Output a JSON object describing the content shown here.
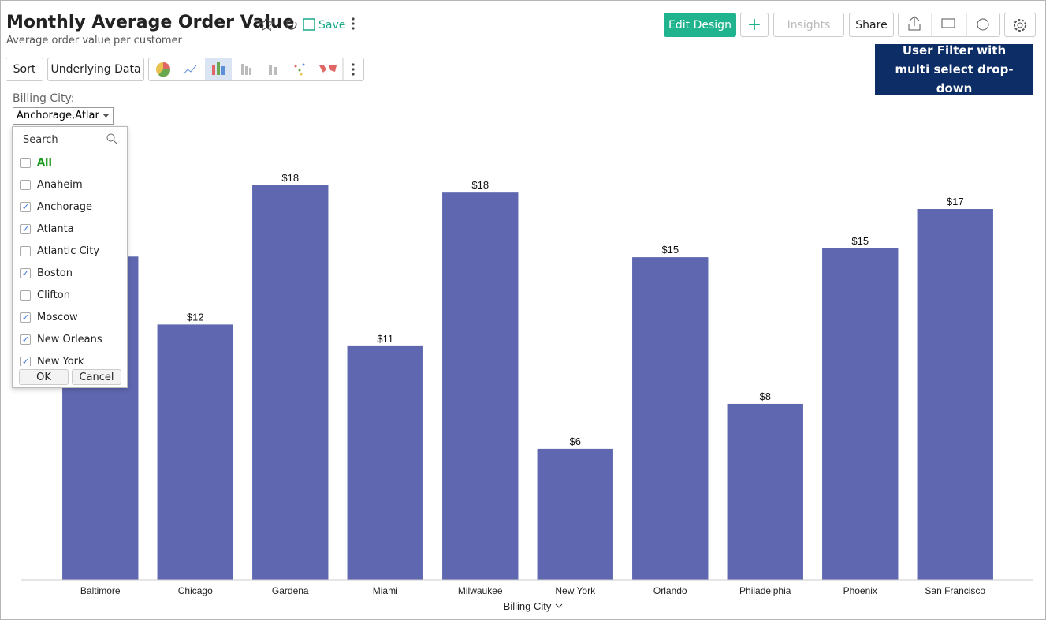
{
  "header": {
    "title": "Monthly Average Order Value",
    "subtitle": "Average order value per customer",
    "save": "Save"
  },
  "toolbar": {
    "edit_design": "Edit Design",
    "insights": "Insights",
    "share": "Share",
    "sort": "Sort",
    "underlying_data": "Underlying Data"
  },
  "filter": {
    "label": "Billing City:",
    "selected": "Anchorage,Atlar",
    "search": "Search",
    "items": [
      {
        "label": "All",
        "checked": false
      },
      {
        "label": "Anaheim",
        "checked": false
      },
      {
        "label": "Anchorage",
        "checked": true
      },
      {
        "label": "Atlanta",
        "checked": true
      },
      {
        "label": "Atlantic City",
        "checked": false
      },
      {
        "label": "Boston",
        "checked": true
      },
      {
        "label": "Clifton",
        "checked": false
      },
      {
        "label": "Moscow",
        "checked": true
      },
      {
        "label": "New Orleans",
        "checked": true
      },
      {
        "label": "New York",
        "checked": true
      }
    ],
    "ok": "OK",
    "cancel": "Cancel"
  },
  "annotation": "User Filter with multi select drop-down",
  "chart_data": {
    "type": "bar",
    "x_label": "Billing City",
    "color": "#5e67b0",
    "categories": [
      "Baltimore",
      "Chicago",
      "Gardena",
      "Miami",
      "Milwaukee",
      "New York",
      "Orlando",
      "Philadelphia",
      "Phoenix",
      "San Francisco"
    ],
    "values": [
      14.75,
      11.65,
      18,
      10.66,
      17.67,
      5.98,
      14.72,
      8.03,
      15.12,
      16.92
    ],
    "value_labels": [
      null,
      "$12",
      "$18",
      "$11",
      "$18",
      "$6",
      "$15",
      "$8",
      "$15",
      "$17"
    ],
    "ylim": [
      0,
      18
    ]
  }
}
